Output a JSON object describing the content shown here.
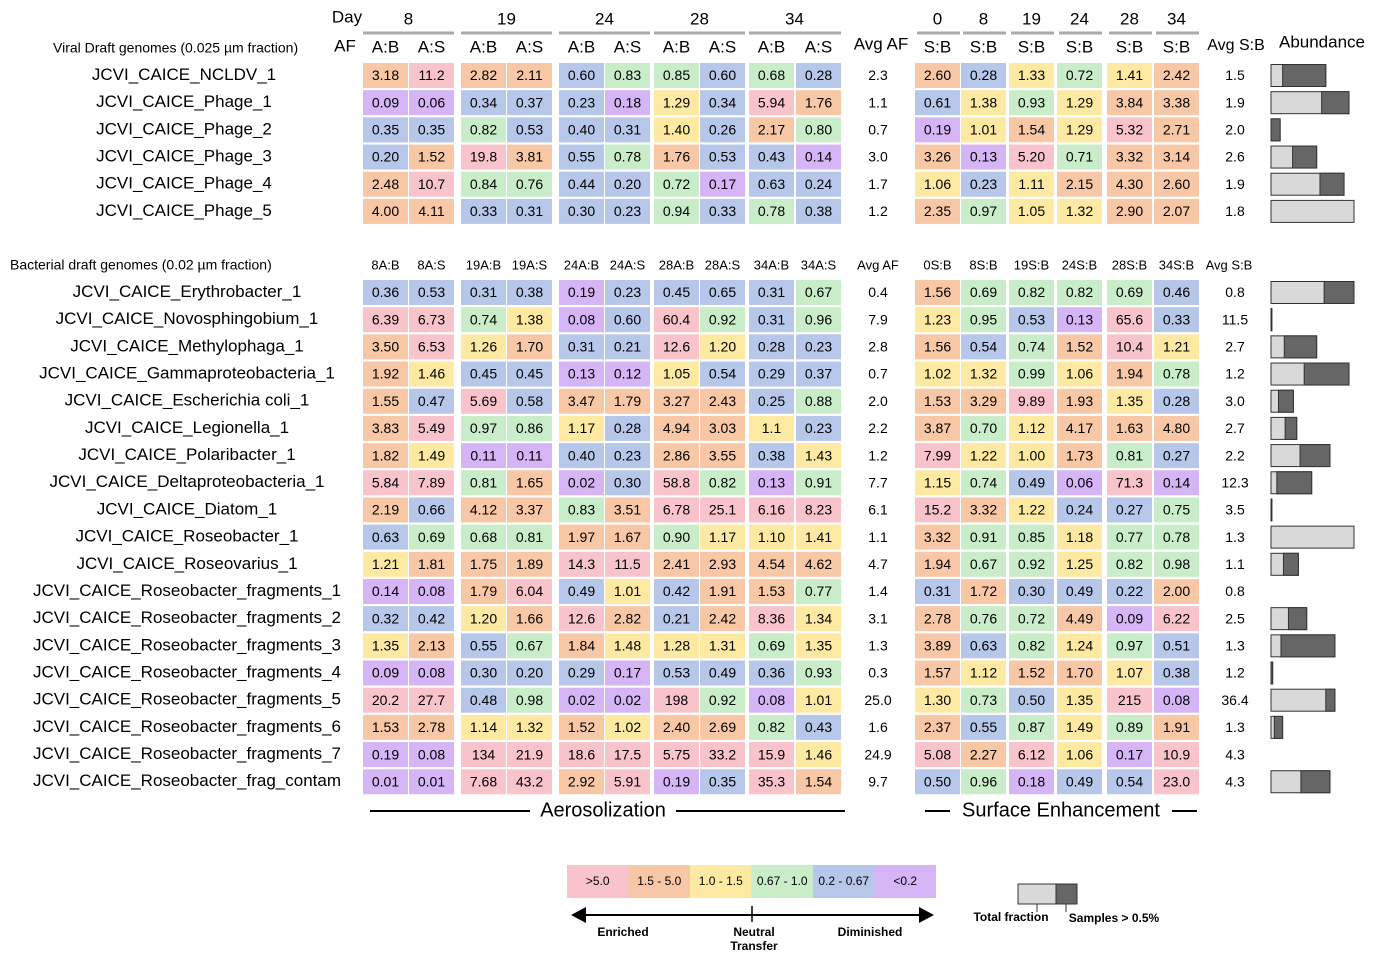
{
  "header": {
    "day": "Day",
    "af": "AF",
    "af_days": [
      "8",
      "19",
      "24",
      "28",
      "34"
    ],
    "af_columns": [
      "A:B",
      "A:S",
      "A:B",
      "A:S",
      "A:B",
      "A:S",
      "A:B",
      "A:S",
      "A:B",
      "A:S"
    ],
    "avg_af": "Avg AF",
    "sb_days": [
      "0",
      "8",
      "19",
      "24",
      "28",
      "34"
    ],
    "sb_columns": [
      "S:B",
      "S:B",
      "S:B",
      "S:B",
      "S:B",
      "S:B"
    ],
    "avg_sb": "Avg S:B",
    "abundance": "Abundance"
  },
  "viral": {
    "title": "Viral Draft genomes (0.025 µm fraction)",
    "rows": [
      {
        "name": "JCVI_CAICE_NCLDV_1",
        "af": [
          "3.18",
          "11.2",
          "2.82",
          "2.11",
          "0.60",
          "0.83",
          "0.85",
          "0.60",
          "0.68",
          "0.28"
        ],
        "avg_af": "2.3",
        "sb": [
          "2.60",
          "0.28",
          "1.33",
          "0.72",
          "1.41",
          "2.42"
        ],
        "avg_sb": "1.5",
        "abundance": {
          "total": 66,
          "samples": 52
        }
      },
      {
        "name": "JCVI_CAICE_Phage_1",
        "af": [
          "0.09",
          "0.06",
          "0.34",
          "0.37",
          "0.23",
          "0.18",
          "1.29",
          "0.34",
          "5.94",
          "1.76"
        ],
        "avg_af": "1.1",
        "sb": [
          "0.61",
          "1.38",
          "0.93",
          "1.29",
          "3.84",
          "3.38"
        ],
        "avg_sb": "1.9",
        "abundance": {
          "total": 94,
          "samples": 33
        }
      },
      {
        "name": "JCVI_CAICE_Phage_2",
        "af": [
          "0.35",
          "0.35",
          "0.82",
          "0.53",
          "0.40",
          "0.31",
          "1.40",
          "0.26",
          "2.17",
          "0.80"
        ],
        "avg_af": "0.7",
        "sb": [
          "0.19",
          "1.01",
          "1.54",
          "1.29",
          "5.32",
          "2.71"
        ],
        "avg_sb": "2.0",
        "abundance": {
          "total": 11,
          "samples": 11
        }
      },
      {
        "name": "JCVI_CAICE_Phage_3",
        "af": [
          "0.20",
          "1.52",
          "19.8",
          "3.81",
          "0.55",
          "0.78",
          "1.76",
          "0.53",
          "0.43",
          "0.14"
        ],
        "avg_af": "3.0",
        "sb": [
          "3.26",
          "0.13",
          "5.20",
          "0.71",
          "3.32",
          "3.14"
        ],
        "avg_sb": "2.6",
        "abundance": {
          "total": 55,
          "samples": 29
        }
      },
      {
        "name": "JCVI_CAICE_Phage_4",
        "af": [
          "2.48",
          "10.7",
          "0.84",
          "0.76",
          "0.44",
          "0.20",
          "0.72",
          "0.17",
          "0.63",
          "0.24"
        ],
        "avg_af": "1.7",
        "sb": [
          "1.06",
          "0.23",
          "1.11",
          "2.15",
          "4.30",
          "2.60"
        ],
        "avg_sb": "1.9",
        "abundance": {
          "total": 88,
          "samples": 29
        }
      },
      {
        "name": "JCVI_CAICE_Phage_5",
        "af": [
          "4.00",
          "4.11",
          "0.33",
          "0.31",
          "0.30",
          "0.23",
          "0.94",
          "0.33",
          "0.78",
          "0.38"
        ],
        "avg_af": "1.2",
        "sb": [
          "2.35",
          "0.97",
          "1.05",
          "1.32",
          "2.90",
          "2.07"
        ],
        "avg_sb": "1.8",
        "abundance": {
          "total": 100,
          "samples": 0
        }
      }
    ]
  },
  "bacterial": {
    "title": "Bacterial draft genomes (0.02 µm fraction)",
    "af_columns": [
      "8A:B",
      "8A:S",
      "19A:B",
      "19A:S",
      "24A:B",
      "24A:S",
      "28A:B",
      "28A:S",
      "34A:B",
      "34A:S"
    ],
    "avg_af": "Avg AF",
    "sb_columns": [
      "0S:B",
      "8S:B",
      "19S:B",
      "24S:B",
      "28S:B",
      "34S:B"
    ],
    "avg_sb": "Avg S:B",
    "rows": [
      {
        "name": "JCVI_CAICE_Erythrobacter_1",
        "af": [
          "0.36",
          "0.53",
          "0.31",
          "0.38",
          "0.19",
          "0.23",
          "0.45",
          "0.65",
          "0.31",
          "0.67"
        ],
        "avg_af": "0.4",
        "sb": [
          "1.56",
          "0.69",
          "0.82",
          "0.82",
          "0.69",
          "0.46"
        ],
        "avg_sb": "0.8",
        "abundance": {
          "total": 100,
          "samples": 36
        }
      },
      {
        "name": "JCVI_CAICE_Novosphingobium_1",
        "af": [
          "6.39",
          "6.73",
          "0.74",
          "1.38",
          "0.08",
          "0.60",
          "60.4",
          "0.92",
          "0.31",
          "0.96"
        ],
        "avg_af": "7.9",
        "sb": [
          "1.23",
          "0.95",
          "0.53",
          "0.13",
          "65.6",
          "0.33"
        ],
        "avg_sb": "11.5",
        "abundance": {
          "total": 1,
          "samples": 1
        }
      },
      {
        "name": "JCVI_CAICE_Methylophaga_1",
        "af": [
          "3.50",
          "6.53",
          "1.26",
          "1.70",
          "0.31",
          "0.21",
          "12.6",
          "1.20",
          "0.28",
          "0.23"
        ],
        "avg_af": "2.8",
        "sb": [
          "1.56",
          "0.54",
          "0.74",
          "1.52",
          "10.4",
          "1.21"
        ],
        "avg_sb": "2.7",
        "abundance": {
          "total": 55,
          "samples": 39
        }
      },
      {
        "name": "JCVI_CAICE_Gammaproteobacteria_1",
        "af": [
          "1.92",
          "1.46",
          "0.45",
          "0.45",
          "0.13",
          "0.12",
          "1.05",
          "0.54",
          "0.29",
          "0.37"
        ],
        "avg_af": "0.7",
        "sb": [
          "1.02",
          "1.32",
          "0.99",
          "1.06",
          "1.94",
          "0.78"
        ],
        "avg_sb": "1.2",
        "abundance": {
          "total": 94,
          "samples": 54
        }
      },
      {
        "name": "JCVI_CAICE_Escherichia coli_1",
        "af": [
          "1.55",
          "0.47",
          "5.69",
          "0.58",
          "3.47",
          "1.79",
          "3.27",
          "2.43",
          "0.25",
          "0.88"
        ],
        "avg_af": "2.0",
        "sb": [
          "1.53",
          "3.29",
          "9.89",
          "1.93",
          "1.35",
          "0.28"
        ],
        "avg_sb": "3.0",
        "abundance": {
          "total": 27,
          "samples": 18
        }
      },
      {
        "name": "JCVI_CAICE_Legionella_1",
        "af": [
          "3.83",
          "5.49",
          "0.97",
          "0.86",
          "1.17",
          "0.28",
          "4.94",
          "3.03",
          "1.1",
          "0.23"
        ],
        "avg_af": "2.2",
        "sb": [
          "3.87",
          "0.70",
          "1.12",
          "4.17",
          "1.63",
          "4.80"
        ],
        "avg_sb": "2.7",
        "abundance": {
          "total": 31,
          "samples": 14
        }
      },
      {
        "name": "JCVI_CAICE_Polaribacter_1",
        "af": [
          "1.82",
          "1.49",
          "0.11",
          "0.11",
          "0.40",
          "0.23",
          "2.86",
          "3.55",
          "0.38",
          "1.43"
        ],
        "avg_af": "1.2",
        "sb": [
          "7.99",
          "1.22",
          "1.00",
          "1.73",
          "0.81",
          "0.27"
        ],
        "avg_sb": "2.2",
        "abundance": {
          "total": 71,
          "samples": 36
        }
      },
      {
        "name": "JCVI_CAICE_Deltaproteobacteria_1",
        "af": [
          "5.84",
          "7.89",
          "0.81",
          "1.65",
          "0.02",
          "0.30",
          "58.8",
          "0.82",
          "0.13",
          "0.91"
        ],
        "avg_af": "7.7",
        "sb": [
          "1.15",
          "0.74",
          "0.49",
          "0.06",
          "71.3",
          "0.14"
        ],
        "avg_sb": "12.3",
        "abundance": {
          "total": 49,
          "samples": 42
        }
      },
      {
        "name": "JCVI_CAICE_Diatom_1",
        "af": [
          "2.19",
          "0.66",
          "4.12",
          "3.37",
          "0.83",
          "3.51",
          "6.78",
          "25.1",
          "6.16",
          "8.23"
        ],
        "avg_af": "6.1",
        "sb": [
          "15.2",
          "3.32",
          "1.22",
          "0.24",
          "0.27",
          "0.75"
        ],
        "avg_sb": "3.5",
        "abundance": {
          "total": 1,
          "samples": 1
        }
      },
      {
        "name": "JCVI_CAICE_Roseobacter_1",
        "af": [
          "0.63",
          "0.69",
          "0.68",
          "0.81",
          "1.97",
          "1.67",
          "0.90",
          "1.17",
          "1.10",
          "1.41"
        ],
        "avg_af": "1.1",
        "sb": [
          "3.32",
          "0.91",
          "0.85",
          "1.18",
          "0.77",
          "0.78"
        ],
        "avg_sb": "1.3",
        "abundance": {
          "total": 100,
          "samples": 0
        }
      },
      {
        "name": "JCVI_CAICE_Roseovarius_1",
        "af": [
          "1.21",
          "1.81",
          "1.75",
          "1.89",
          "14.3",
          "11.5",
          "2.41",
          "2.93",
          "4.54",
          "4.62"
        ],
        "avg_af": "4.7",
        "sb": [
          "1.94",
          "0.67",
          "0.92",
          "1.25",
          "0.82",
          "0.98"
        ],
        "avg_sb": "1.1",
        "abundance": {
          "total": 33,
          "samples": 18
        }
      },
      {
        "name": "JCVI_CAICE_Roseobacter_fragments_1",
        "af": [
          "0.14",
          "0.08",
          "1.79",
          "6.04",
          "0.49",
          "1.01",
          "0.42",
          "1.91",
          "1.53",
          "0.77"
        ],
        "avg_af": "1.4",
        "sb": [
          "0.31",
          "1.72",
          "0.30",
          "0.49",
          "0.22",
          "2.00"
        ],
        "avg_sb": "0.8",
        "abundance": {
          "total": null,
          "samples": null
        }
      },
      {
        "name": "JCVI_CAICE_Roseobacter_fragments_2",
        "af": [
          "0.32",
          "0.42",
          "1.20",
          "1.66",
          "12.6",
          "2.82",
          "0.21",
          "2.42",
          "8.36",
          "1.34"
        ],
        "avg_af": "3.1",
        "sb": [
          "2.78",
          "0.76",
          "0.72",
          "4.49",
          "0.09",
          "6.22"
        ],
        "avg_sb": "2.5",
        "abundance": {
          "total": 43,
          "samples": 22
        }
      },
      {
        "name": "JCVI_CAICE_Roseobacter_fragments_3",
        "af": [
          "1.35",
          "2.13",
          "0.55",
          "0.67",
          "1.84",
          "1.48",
          "1.28",
          "1.31",
          "0.69",
          "1.35"
        ],
        "avg_af": "1.3",
        "sb": [
          "3.89",
          "0.63",
          "0.82",
          "1.24",
          "0.97",
          "0.51"
        ],
        "avg_sb": "1.3",
        "abundance": {
          "total": 77,
          "samples": 65
        }
      },
      {
        "name": "JCVI_CAICE_Roseobacter_fragments_4",
        "af": [
          "0.09",
          "0.08",
          "0.30",
          "0.20",
          "0.29",
          "0.17",
          "0.53",
          "0.49",
          "0.36",
          "0.93"
        ],
        "avg_af": "0.3",
        "sb": [
          "1.57",
          "1.12",
          "1.52",
          "1.70",
          "1.07",
          "0.38"
        ],
        "avg_sb": "1.2",
        "abundance": {
          "total": 2,
          "samples": 2
        }
      },
      {
        "name": "JCVI_CAICE_Roseobacter_fragments_5",
        "af": [
          "20.2",
          "27.7",
          "0.48",
          "0.98",
          "0.02",
          "0.02",
          "198",
          "0.92",
          "0.08",
          "1.01"
        ],
        "avg_af": "25.0",
        "sb": [
          "1.30",
          "0.73",
          "0.50",
          "1.35",
          "215",
          "0.08"
        ],
        "avg_sb": "36.4",
        "abundance": {
          "total": 77,
          "samples": 11
        }
      },
      {
        "name": "JCVI_CAICE_Roseobacter_fragments_6",
        "af": [
          "1.53",
          "2.78",
          "1.14",
          "1.32",
          "1.52",
          "1.02",
          "2.40",
          "2.69",
          "0.82",
          "0.43"
        ],
        "avg_af": "1.6",
        "sb": [
          "2.37",
          "0.55",
          "0.87",
          "1.49",
          "0.89",
          "1.91"
        ],
        "avg_sb": "1.3",
        "abundance": {
          "total": 14,
          "samples": 10
        }
      },
      {
        "name": "JCVI_CAICE_Roseobacter_fragments_7",
        "af": [
          "0.19",
          "0.08",
          "134",
          "21.9",
          "18.6",
          "17.5",
          "5.75",
          "33.2",
          "15.9",
          "1.46"
        ],
        "avg_af": "24.9",
        "sb": [
          "5.08",
          "2.27",
          "6.12",
          "1.06",
          "0.17",
          "10.9"
        ],
        "avg_sb": "4.3",
        "abundance": {
          "total": null,
          "samples": null
        }
      },
      {
        "name": "JCVI_CAICE_Roseobacter_frag_contam",
        "af": [
          "0.01",
          "0.01",
          "7.68",
          "43.2",
          "2.92",
          "5.91",
          "0.19",
          "0.35",
          "35.3",
          "1.54"
        ],
        "avg_af": "9.7",
        "sb": [
          "0.50",
          "0.96",
          "0.18",
          "0.49",
          "0.54",
          "23.0"
        ],
        "avg_sb": "4.3",
        "abundance": {
          "total": 71,
          "samples": 35
        }
      }
    ]
  },
  "footer": {
    "aerosolization": "Aerosolization",
    "surface": "Surface Enhancement"
  },
  "legend": {
    "bins": [
      {
        "label": ">5.0",
        "min": 5,
        "color": "#f9c3cc",
        "text_color": "#c0143c"
      },
      {
        "label": "1.5  -  5.0",
        "min": 1.5,
        "color": "#f8c8a6",
        "text_color": "#8b3a0f"
      },
      {
        "label": "1.0 - 1.5",
        "min": 1.0,
        "color": "#fde9a2",
        "text_color": "#7a5a00"
      },
      {
        "label": "0.67 - 1.0",
        "min": 0.67,
        "color": "#c8edc8",
        "text_color": "#1e7a1e"
      },
      {
        "label": "0.2 - 0.67",
        "min": 0.2,
        "color": "#b6c7ea",
        "text_color": "#2a4aa0"
      },
      {
        "label": "<0.2",
        "color": "#d5b5f5",
        "text_color": "#7a22b8"
      }
    ],
    "enriched": "Enriched",
    "neutral": [
      "Neutral",
      "Transfer"
    ],
    "diminished": "Diminished",
    "total_fraction": "Total fraction",
    "samples": "Samples > 0.5%",
    "total_color": "#d9d9d9",
    "samples_color": "#666666"
  }
}
